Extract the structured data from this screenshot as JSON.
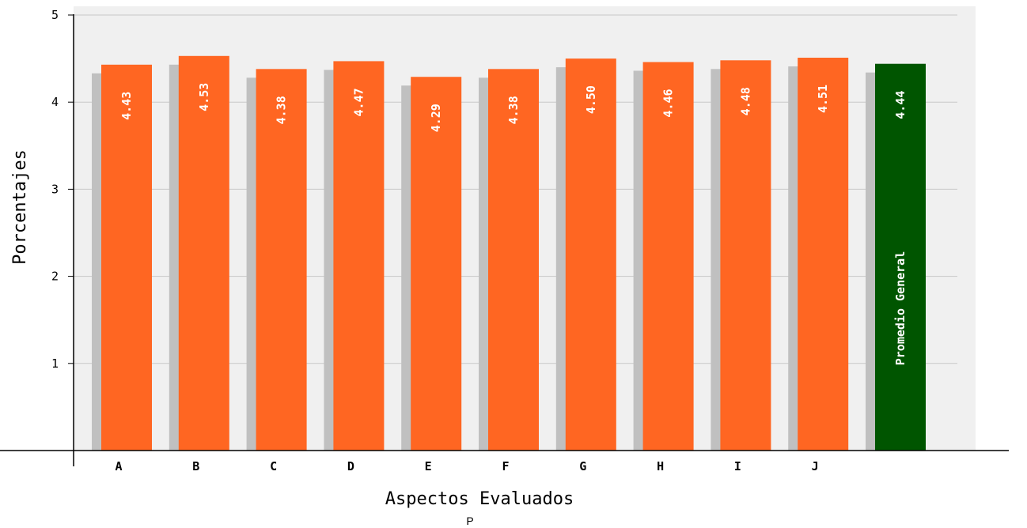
{
  "chart_data": {
    "type": "bar",
    "title": "",
    "xlabel": "Aspectos Evaluados",
    "ylabel": "Porcentajes",
    "ylim": [
      0,
      5
    ],
    "yticks": [
      "1",
      "2",
      "3",
      "4",
      "5"
    ],
    "grid": true,
    "legend": "none",
    "categories": [
      "A",
      "B",
      "C",
      "D",
      "E",
      "F",
      "G",
      "H",
      "I",
      "J",
      ""
    ],
    "values": [
      4.43,
      4.53,
      4.38,
      4.47,
      4.29,
      4.38,
      4.5,
      4.46,
      4.48,
      4.51,
      4.44
    ],
    "value_labels": [
      "4.43",
      "4.53",
      "4.38",
      "4.47",
      "4.29",
      "4.38",
      "4.50",
      "4.46",
      "4.48",
      "4.51",
      "4.44"
    ],
    "average_bar_label": "Promedio General",
    "colors": {
      "bar": "#ff6622",
      "average_bar": "#005500",
      "shadow": "#c0c0c0",
      "grid": "#c8c8c8",
      "background": "#f0f0f0"
    }
  },
  "footer": {
    "text": "P"
  }
}
